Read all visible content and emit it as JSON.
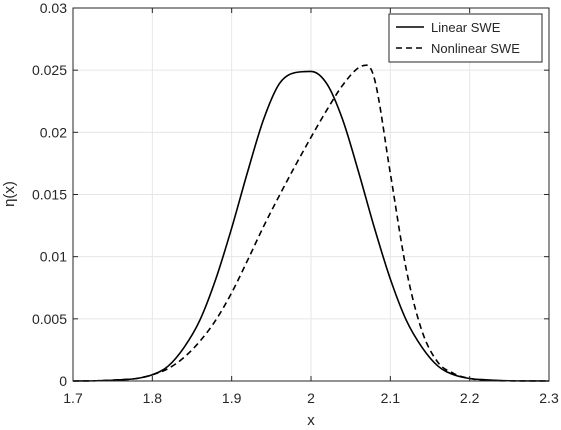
{
  "chart_data": {
    "type": "line",
    "title": "",
    "xlabel": "x",
    "ylabel": "η(x)",
    "xlim": [
      1.7,
      2.3
    ],
    "ylim": [
      0,
      0.03
    ],
    "x_ticks": [
      1.7,
      1.8,
      1.9,
      2.0,
      2.1,
      2.2,
      2.3
    ],
    "x_tick_labels": [
      "1.7",
      "1.8",
      "1.9",
      "2",
      "2.1",
      "2.2",
      "2.3"
    ],
    "y_ticks": [
      0,
      0.005,
      0.01,
      0.015,
      0.02,
      0.025,
      0.03
    ],
    "y_tick_labels": [
      "0",
      "0.005",
      "0.01",
      "0.015",
      "0.02",
      "0.025",
      "0.03"
    ],
    "grid": true,
    "legend_position": "top-right",
    "series": [
      {
        "name": "Linear SWE",
        "line_style": "solid",
        "color": "#000000",
        "x": [
          1.7,
          1.73,
          1.76,
          1.78,
          1.8,
          1.82,
          1.84,
          1.86,
          1.88,
          1.9,
          1.92,
          1.94,
          1.96,
          1.98,
          2.0,
          2.02,
          2.04,
          2.06,
          2.08,
          2.1,
          2.12,
          2.14,
          2.16,
          2.18,
          2.2,
          2.22,
          2.25,
          2.3
        ],
        "y": [
          0.0,
          2e-05,
          0.0001,
          0.0002,
          0.0005,
          0.0012,
          0.0027,
          0.0049,
          0.0082,
          0.0123,
          0.0168,
          0.021,
          0.0239,
          0.0248,
          0.0249,
          0.0239,
          0.021,
          0.0168,
          0.0123,
          0.0082,
          0.0049,
          0.0027,
          0.0012,
          0.0005,
          0.0002,
          0.0001,
          2e-05,
          0.0
        ]
      },
      {
        "name": "Nonlinear SWE",
        "line_style": "dashed",
        "color": "#000000",
        "x": [
          1.7,
          1.73,
          1.76,
          1.78,
          1.8,
          1.82,
          1.84,
          1.86,
          1.88,
          1.9,
          1.92,
          1.94,
          1.96,
          1.98,
          2.0,
          2.02,
          2.04,
          2.06,
          2.07,
          2.08,
          2.1,
          2.12,
          2.14,
          2.16,
          2.18,
          2.2,
          2.22,
          2.25,
          2.3
        ],
        "y": [
          0.0,
          2e-05,
          0.0001,
          0.0002,
          0.0005,
          0.001,
          0.0019,
          0.0032,
          0.0049,
          0.0071,
          0.0097,
          0.0124,
          0.0149,
          0.0173,
          0.0196,
          0.0218,
          0.0238,
          0.0252,
          0.0254,
          0.0243,
          0.0167,
          0.009,
          0.004,
          0.0015,
          0.0006,
          0.0002,
          5e-05,
          1e-05,
          0.0
        ]
      }
    ]
  }
}
